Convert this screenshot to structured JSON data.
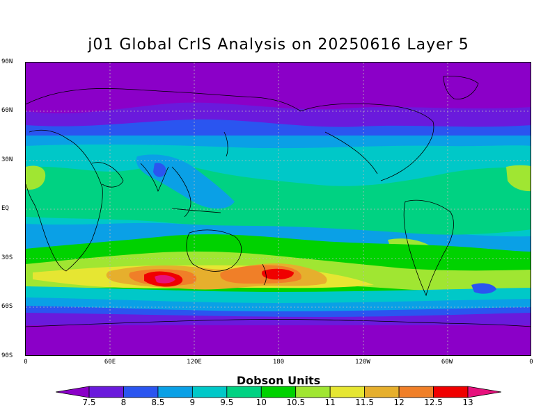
{
  "title": "j01 Global CrIS Analysis on 20250616 Layer 5",
  "map": {
    "lat_labels": [
      "90N",
      "60N",
      "30N",
      "EQ",
      "30S",
      "60S",
      "90S"
    ],
    "lon_labels": [
      "0",
      "60E",
      "120E",
      "180",
      "120W",
      "60W",
      "0"
    ]
  },
  "colorbar": {
    "label": "Dobson Units",
    "ticks": [
      "7.5",
      "8",
      "8.5",
      "9",
      "9.5",
      "10",
      "10.5",
      "11",
      "11.5",
      "12",
      "12.5",
      "13"
    ],
    "colors": [
      "#8b00c8",
      "#6a1adc",
      "#2a55f0",
      "#0aa0e6",
      "#00c8c8",
      "#00d282",
      "#00d200",
      "#a0e632",
      "#e6e632",
      "#e6af2d",
      "#f07f28",
      "#f00000",
      "#e6127d"
    ]
  }
}
